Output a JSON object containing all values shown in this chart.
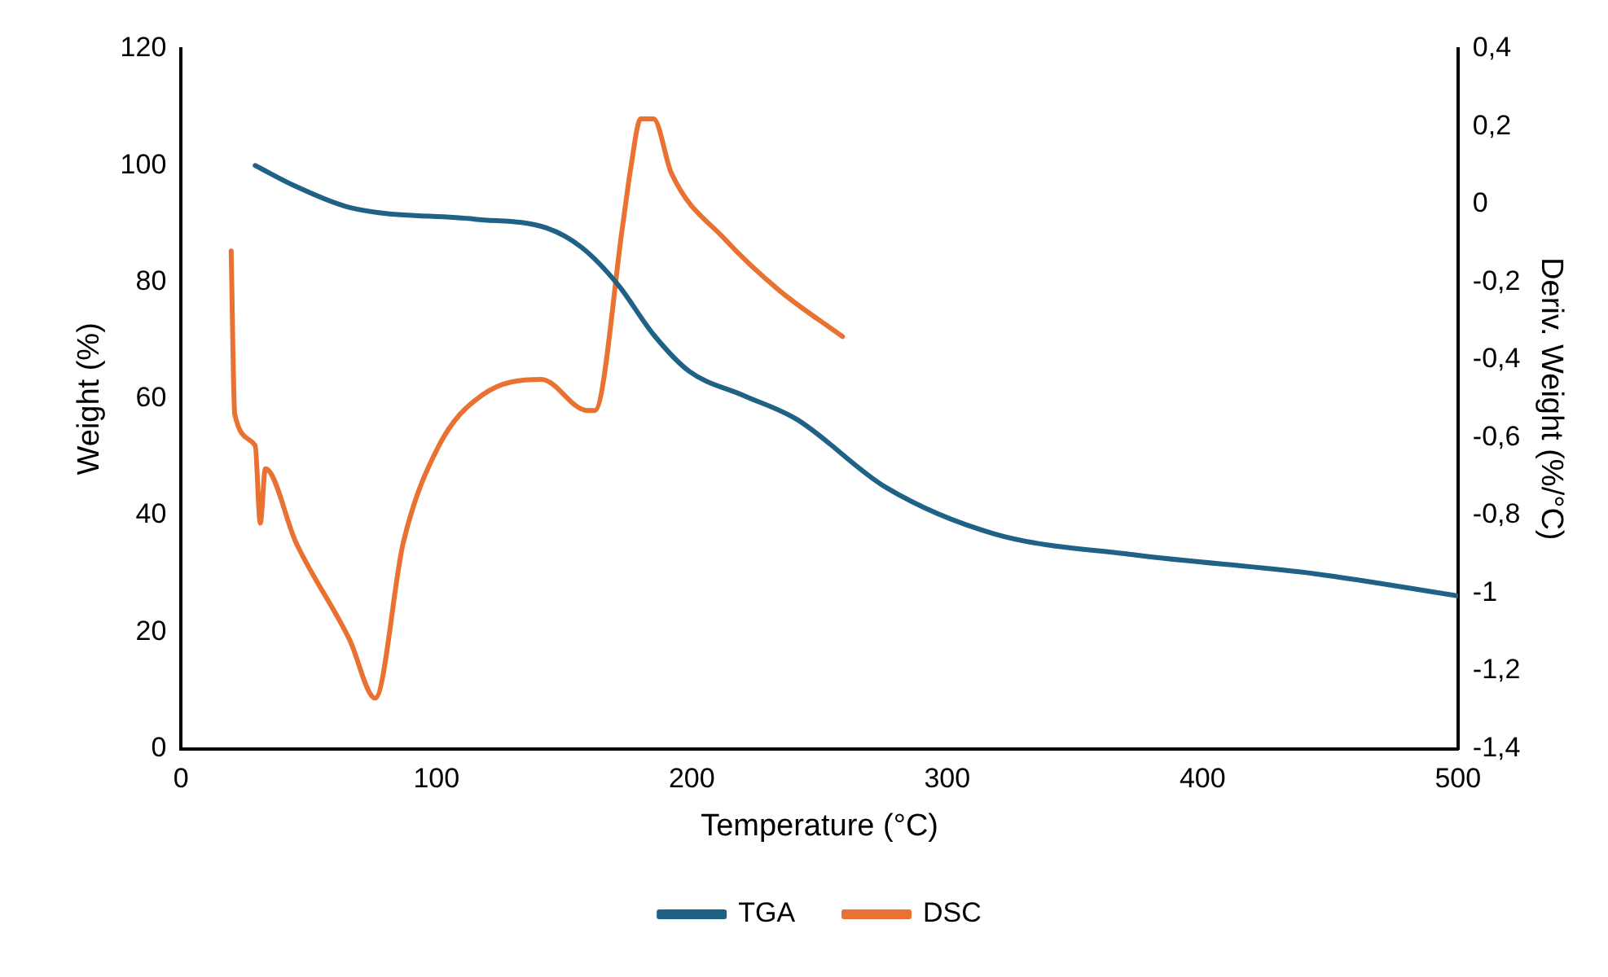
{
  "chart_data": {
    "type": "line",
    "xlabel": "Temperature (°C)",
    "ylabel": "Weight (%)",
    "y2label": "Deriv. Weight (%/°C)",
    "xlim": [
      0,
      500
    ],
    "xticks": [
      0,
      100,
      200,
      300,
      400,
      500
    ],
    "ylim": [
      0,
      120
    ],
    "yticks": [
      0,
      20,
      40,
      60,
      80,
      100,
      120
    ],
    "y2lim": [
      -1.4,
      0.4
    ],
    "y2ticks": [
      {
        "value": -1.4,
        "label": "-1,4"
      },
      {
        "value": -1.2,
        "label": "-1,2"
      },
      {
        "value": -1,
        "label": "-1"
      },
      {
        "value": -0.8,
        "label": "-0,8"
      },
      {
        "value": -0.6,
        "label": "-0,6"
      },
      {
        "value": -0.4,
        "label": "-0,4"
      },
      {
        "value": -0.2,
        "label": "-0,2"
      },
      {
        "value": 0,
        "label": "0"
      },
      {
        "value": 0.2,
        "label": "0,2"
      },
      {
        "value": 0.4,
        "label": "0,4"
      }
    ],
    "grid": false,
    "legend": "bottom",
    "marker": "none",
    "line_style": "solid",
    "series": [
      {
        "name": "TGA",
        "color": "#1f6285",
        "x": [
          29,
          45,
          66,
          115,
          143,
          157,
          171,
          185,
          199,
          220,
          241,
          276,
          318,
          374,
          444,
          500
        ],
        "values": [
          100,
          96.4,
          92.8,
          90.8,
          89.3,
          85.9,
          79.6,
          71,
          64.7,
          60.6,
          56.5,
          44.8,
          36.9,
          33.2,
          30,
          26.2
        ]
      },
      {
        "name": "DSC",
        "color": "#e97132",
        "axis": "y2",
        "x": [
          19.6,
          21,
          29,
          31,
          33,
          45,
          66,
          76,
          87,
          101,
          118,
          141,
          159,
          162,
          173,
          176,
          180,
          185,
          192,
          213,
          234,
          259
        ],
        "values": [
          -0.12,
          -0.54,
          -0.62,
          -0.82,
          -0.68,
          -0.87,
          -1.12,
          -1.27,
          -0.87,
          -0.62,
          -0.49,
          -0.45,
          -0.53,
          -0.53,
          -0.05,
          0.09,
          0.22,
          0.22,
          0.08,
          -0.09,
          -0.22,
          -0.34
        ]
      }
    ]
  }
}
